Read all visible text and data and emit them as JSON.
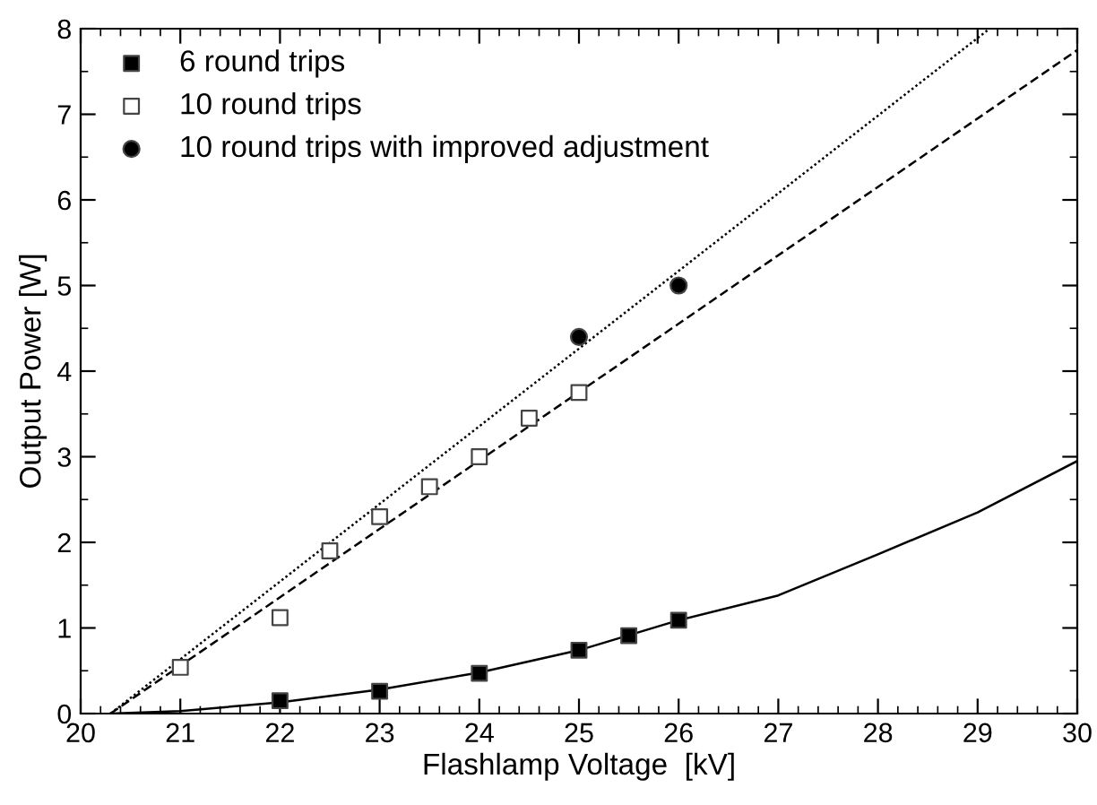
{
  "chart_data": {
    "type": "scatter",
    "xlabel": "Flashlamp Voltage  [kV]",
    "ylabel": "Output Power [W]",
    "xlim": [
      20,
      30
    ],
    "ylim": [
      0,
      8
    ],
    "xticks": [
      20,
      21,
      22,
      23,
      24,
      25,
      26,
      27,
      28,
      29,
      30
    ],
    "yticks": [
      0,
      1,
      2,
      3,
      4,
      5,
      6,
      7,
      8
    ],
    "grid": false,
    "legend": "top left",
    "series": [
      {
        "name": "6 round trips",
        "color": "#000000",
        "marker": "square",
        "x": [
          22,
          23,
          24,
          25,
          25.5,
          26
        ],
        "values": [
          0.15,
          0.26,
          0.47,
          0.74,
          0.91,
          1.09
        ]
      },
      {
        "name": "10 round trips",
        "color": "#ffffff",
        "marker": "square",
        "x": [
          21,
          22,
          22.5,
          23,
          23.5,
          24,
          24.5,
          25
        ],
        "values": [
          0.54,
          1.12,
          1.9,
          2.3,
          2.65,
          3.0,
          3.45,
          3.75
        ]
      },
      {
        "name": "10 round trips with improved adjustment",
        "color": "#000000",
        "marker": "circle",
        "x": [
          25,
          26
        ],
        "values": [
          4.4,
          5.0
        ]
      },
      {
        "type": "line",
        "color": "#000000",
        "line_style": "solid",
        "x": [
          20.3,
          21,
          22,
          23,
          24,
          25,
          26,
          27,
          28,
          29,
          30
        ],
        "values": [
          0,
          0.03,
          0.13,
          0.28,
          0.48,
          0.74,
          1.09,
          1.38,
          1.86,
          2.35,
          2.95
        ]
      },
      {
        "type": "line",
        "color": "#000000",
        "line_style": "dashed",
        "x": [
          20.3,
          30
        ],
        "values": [
          0,
          7.75
        ]
      },
      {
        "type": "line",
        "color": "#000000",
        "line_style": "dotted",
        "x": [
          20.3,
          29.12
        ],
        "values": [
          0,
          8
        ]
      }
    ]
  }
}
